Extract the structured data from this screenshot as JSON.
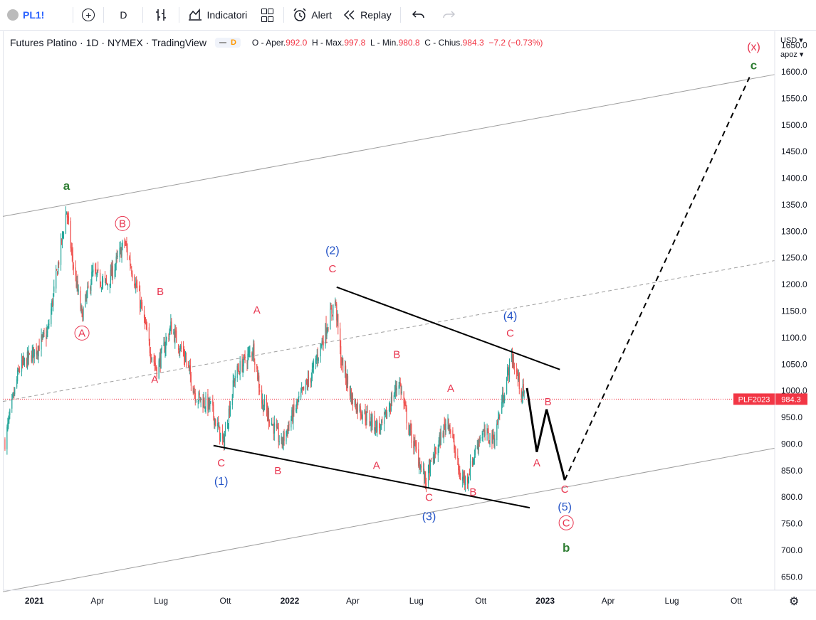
{
  "toolbar": {
    "symbol": "PL1!",
    "interval": "D",
    "indicators_label": "Indicatori",
    "alert_label": "Alert",
    "replay_label": "Replay"
  },
  "legend": {
    "title": "Futures Platino · 1D · NYMEX · TradingView",
    "badge": "D",
    "o_label": "O - Aper.",
    "o_value": "992.0",
    "h_label": "H - Max.",
    "h_value": "997.8",
    "l_label": "L - Min.",
    "l_value": "980.8",
    "c_label": "C - Chius.",
    "c_value": "984.3",
    "change": "−7.2 (−0.73%)"
  },
  "price_axis": {
    "currency": "USD",
    "mode": "apoz"
  },
  "colors": {
    "up": "#26a69a",
    "down": "#ef5350",
    "red_label": "#e8354f",
    "blue_label": "#2151c6",
    "green_label": "#2e7d32",
    "price_tag": "#f23645"
  },
  "chart_data": {
    "type": "candlestick",
    "symbol": "PLF2023",
    "last_price": "984.3",
    "y_ticks": [
      650,
      700,
      750,
      800,
      850,
      900,
      950,
      1000,
      1050,
      1100,
      1150,
      1200,
      1250,
      1300,
      1350,
      1400,
      1450,
      1500,
      1550,
      1600,
      1650
    ],
    "ylim": [
      625,
      1675
    ],
    "x_ticks": [
      {
        "label": "2021",
        "date": "2021-01-01"
      },
      {
        "label": "Apr",
        "date": "2021-04-01"
      },
      {
        "label": "Lug",
        "date": "2021-07-01"
      },
      {
        "label": "Ott",
        "date": "2021-10-01"
      },
      {
        "label": "2022",
        "date": "2022-01-01"
      },
      {
        "label": "Apr",
        "date": "2022-04-01"
      },
      {
        "label": "Lug",
        "date": "2022-07-01"
      },
      {
        "label": "Ott",
        "date": "2022-10-01"
      },
      {
        "label": "2023",
        "date": "2023-01-01"
      },
      {
        "label": "Apr",
        "date": "2023-04-01"
      },
      {
        "label": "Lug",
        "date": "2023-07-01"
      },
      {
        "label": "Ott",
        "date": "2023-10-01"
      }
    ],
    "xlim": [
      "2020-11-17",
      "2023-11-25"
    ],
    "price_path": [
      [
        "2020-11-20",
        905
      ],
      [
        "2020-12-10",
        1040
      ],
      [
        "2021-01-05",
        1080
      ],
      [
        "2021-01-20",
        1110
      ],
      [
        "2021-02-16",
        1340
      ],
      [
        "2021-02-24",
        1250
      ],
      [
        "2021-03-10",
        1140
      ],
      [
        "2021-03-25",
        1220
      ],
      [
        "2021-04-15",
        1200
      ],
      [
        "2021-05-10",
        1280
      ],
      [
        "2021-05-30",
        1180
      ],
      [
        "2021-06-15",
        1080
      ],
      [
        "2021-06-25",
        1040
      ],
      [
        "2021-07-15",
        1120
      ],
      [
        "2021-08-05",
        1060
      ],
      [
        "2021-08-20",
        990
      ],
      [
        "2021-09-10",
        970
      ],
      [
        "2021-09-28",
        900
      ],
      [
        "2021-10-15",
        1030
      ],
      [
        "2021-11-10",
        1080
      ],
      [
        "2021-11-22",
        980
      ],
      [
        "2021-12-10",
        930
      ],
      [
        "2021-12-20",
        900
      ],
      [
        "2022-01-10",
        970
      ],
      [
        "2022-02-01",
        1030
      ],
      [
        "2022-03-07",
        1170
      ],
      [
        "2022-03-15",
        1060
      ],
      [
        "2022-04-01",
        980
      ],
      [
        "2022-05-03",
        935
      ],
      [
        "2022-05-12",
        930
      ],
      [
        "2022-06-06",
        1020
      ],
      [
        "2022-06-20",
        930
      ],
      [
        "2022-07-14",
        830
      ],
      [
        "2022-08-15",
        950
      ],
      [
        "2022-09-01",
        840
      ],
      [
        "2022-09-10",
        830
      ],
      [
        "2022-10-01",
        920
      ],
      [
        "2022-10-20",
        910
      ],
      [
        "2022-11-14",
        1065
      ],
      [
        "2022-11-28",
        1000
      ],
      [
        "2022-12-02",
        990
      ]
    ],
    "channel_lines": [
      {
        "style": "solid",
        "color": "#9e9e9e",
        "start": [
          "2020-11-17",
          1328
        ],
        "end": [
          "2023-11-25",
          1595
        ]
      },
      {
        "style": "dashed",
        "color": "#9e9e9e",
        "start": [
          "2020-11-17",
          980
        ],
        "end": [
          "2023-11-25",
          1245
        ]
      },
      {
        "style": "solid",
        "color": "#9e9e9e",
        "start": [
          "2020-11-17",
          622
        ],
        "end": [
          "2023-11-25",
          892
        ]
      }
    ],
    "wedge_lines": [
      {
        "start": [
          "2022-03-09",
          1195
        ],
        "end": [
          "2023-01-22",
          1040
        ]
      },
      {
        "start": [
          "2021-09-14",
          897
        ],
        "end": [
          "2022-12-10",
          780
        ]
      }
    ],
    "projection_solid": [
      [
        "2022-12-06",
        1005
      ],
      [
        "2022-12-20",
        885
      ],
      [
        "2023-01-03",
        965
      ],
      [
        "2023-01-29",
        832
      ]
    ],
    "projection_dashed": [
      [
        "2023-01-29",
        832
      ],
      [
        "2023-10-20",
        1590
      ]
    ],
    "wave_labels": [
      {
        "text": "a",
        "date": "2021-02-16",
        "price": 1378,
        "color": "green",
        "circled": false
      },
      {
        "text": "A",
        "date": "2021-03-10",
        "price": 1102,
        "color": "red",
        "circled": true
      },
      {
        "text": "B",
        "date": "2021-05-07",
        "price": 1308,
        "color": "red",
        "circled": true
      },
      {
        "text": "B",
        "date": "2021-06-30",
        "price": 1180,
        "color": "red",
        "circled": false
      },
      {
        "text": "A",
        "date": "2021-06-22",
        "price": 1015,
        "color": "red",
        "circled": false
      },
      {
        "text": "C",
        "date": "2021-09-25",
        "price": 858,
        "color": "red",
        "circled": false
      },
      {
        "text": "(1)",
        "date": "2021-09-25",
        "price": 823,
        "color": "blue",
        "circled": false
      },
      {
        "text": "A",
        "date": "2021-11-15",
        "price": 1145,
        "color": "red",
        "circled": false
      },
      {
        "text": "B",
        "date": "2021-12-15",
        "price": 843,
        "color": "red",
        "circled": false
      },
      {
        "text": "(2)",
        "date": "2022-03-03",
        "price": 1257,
        "color": "blue",
        "circled": false
      },
      {
        "text": "C",
        "date": "2022-03-03",
        "price": 1223,
        "color": "red",
        "circled": false
      },
      {
        "text": "B",
        "date": "2022-06-03",
        "price": 1062,
        "color": "red",
        "circled": false
      },
      {
        "text": "A",
        "date": "2022-05-05",
        "price": 853,
        "color": "red",
        "circled": false
      },
      {
        "text": "C",
        "date": "2022-07-19",
        "price": 793,
        "color": "red",
        "circled": false
      },
      {
        "text": "(3)",
        "date": "2022-07-19",
        "price": 757,
        "color": "blue",
        "circled": false
      },
      {
        "text": "A",
        "date": "2022-08-19",
        "price": 998,
        "color": "red",
        "circled": false
      },
      {
        "text": "B",
        "date": "2022-09-20",
        "price": 803,
        "color": "red",
        "circled": false
      },
      {
        "text": "(4)",
        "date": "2022-11-12",
        "price": 1134,
        "color": "blue",
        "circled": false
      },
      {
        "text": "C",
        "date": "2022-11-12",
        "price": 1102,
        "color": "red",
        "circled": false
      },
      {
        "text": "A",
        "date": "2022-12-20",
        "price": 858,
        "color": "red",
        "circled": false
      },
      {
        "text": "B",
        "date": "2023-01-05",
        "price": 973,
        "color": "red",
        "circled": false
      },
      {
        "text": "C",
        "date": "2023-01-29",
        "price": 808,
        "color": "red",
        "circled": false
      },
      {
        "text": "(5)",
        "date": "2023-01-29",
        "price": 775,
        "color": "blue",
        "circled": false
      },
      {
        "text": "C",
        "date": "2023-01-31",
        "price": 745,
        "color": "red",
        "circled": true
      },
      {
        "text": "b",
        "date": "2023-01-31",
        "price": 697,
        "color": "green",
        "circled": false
      },
      {
        "text": "(x)",
        "date": "2023-10-26",
        "price": 1640,
        "color": "red",
        "circled": false
      },
      {
        "text": "c",
        "date": "2023-10-26",
        "price": 1605,
        "color": "green",
        "circled": false
      }
    ]
  }
}
